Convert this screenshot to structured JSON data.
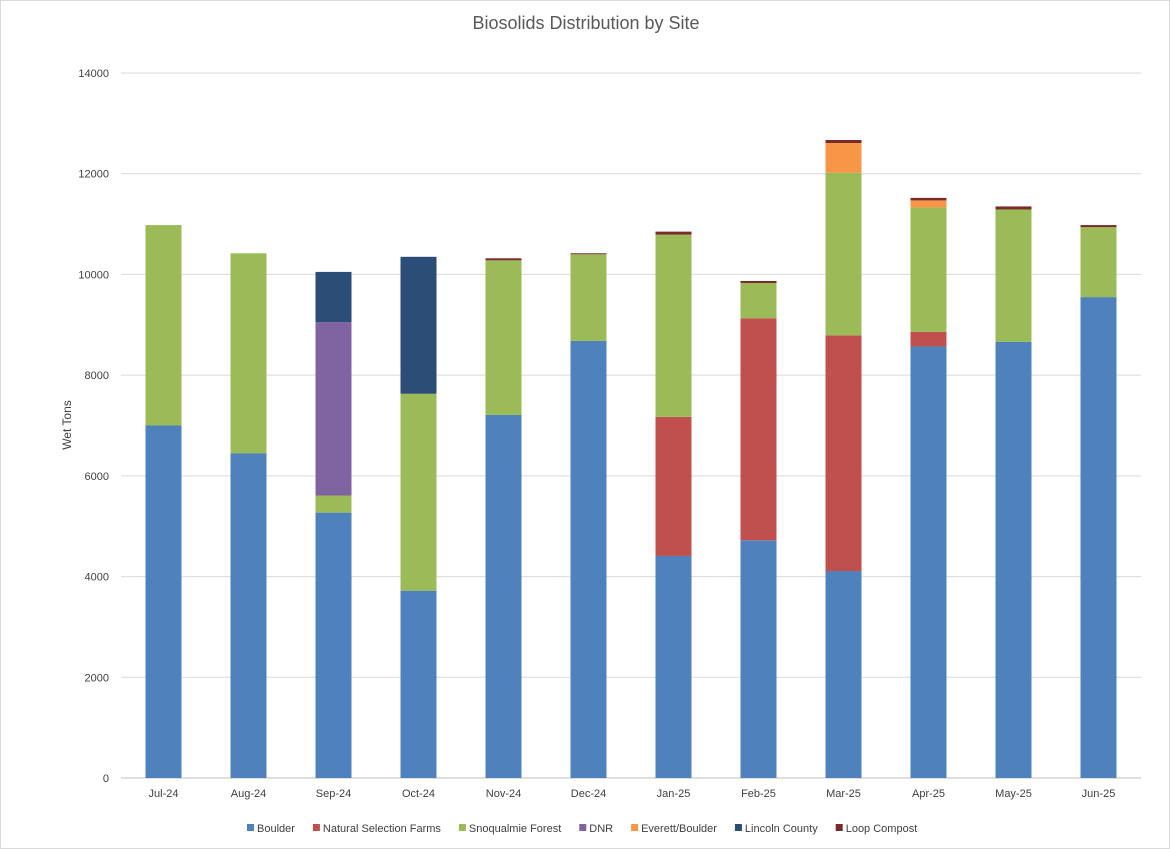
{
  "chart_data": {
    "type": "bar",
    "stacked": true,
    "title": "Biosolids Distribution by Site",
    "xlabel": "",
    "ylabel": "Wet Tons",
    "ylim": [
      0,
      14000
    ],
    "yticks": [
      0,
      2000,
      4000,
      6000,
      8000,
      10000,
      12000,
      14000
    ],
    "grid": true,
    "legend_position": "bottom",
    "categories": [
      "Jul-24",
      "Aug-24",
      "Sep-24",
      "Oct-24",
      "Nov-24",
      "Dec-24",
      "Jan-25",
      "Feb-25",
      "Mar-25",
      "Apr-25",
      "May-25",
      "Jun-25"
    ],
    "series": [
      {
        "name": "Boulder",
        "color": "#4f81bd",
        "values": [
          7000,
          6450,
          5270,
          3720,
          7210,
          8680,
          4410,
          4720,
          4110,
          8570,
          8660,
          9550
        ]
      },
      {
        "name": "Natural Selection Farms",
        "color": "#c0504d",
        "values": [
          0,
          0,
          0,
          0,
          0,
          0,
          2760,
          4410,
          4680,
          290,
          0,
          0
        ]
      },
      {
        "name": "Snoqualmie Forest",
        "color": "#9bbb59",
        "values": [
          3980,
          3970,
          340,
          3910,
          3070,
          1720,
          3620,
          700,
          3230,
          2470,
          2630,
          1390
        ]
      },
      {
        "name": "DNR",
        "color": "#8064a2",
        "values": [
          0,
          0,
          3440,
          0,
          0,
          0,
          0,
          0,
          0,
          0,
          0,
          0
        ]
      },
      {
        "name": "Everett/Boulder",
        "color": "#f79646",
        "values": [
          0,
          0,
          0,
          0,
          0,
          0,
          0,
          0,
          590,
          140,
          0,
          0
        ]
      },
      {
        "name": "Lincoln County",
        "color": "#2c4d75",
        "values": [
          0,
          0,
          1000,
          2720,
          0,
          0,
          0,
          0,
          0,
          0,
          0,
          0
        ]
      },
      {
        "name": "Loop Compost",
        "color": "#772c2a",
        "values": [
          0,
          0,
          0,
          0,
          40,
          20,
          60,
          40,
          60,
          50,
          60,
          40
        ]
      }
    ]
  }
}
